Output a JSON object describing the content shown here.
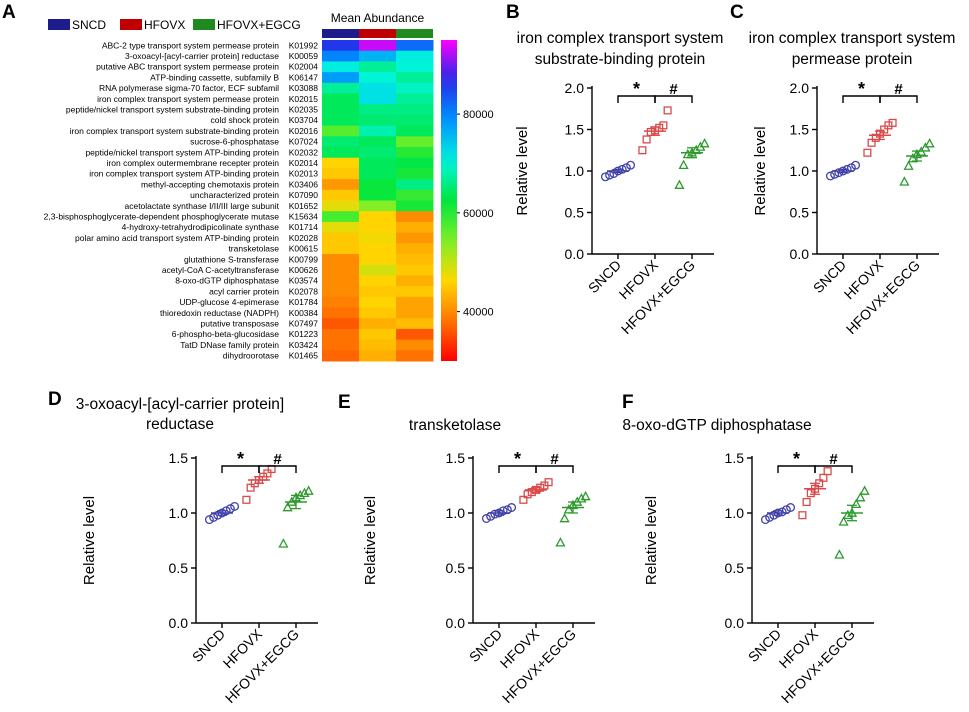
{
  "panel_letters": [
    "A",
    "B",
    "C",
    "D",
    "E",
    "F"
  ],
  "chart_data": [
    {
      "panel": "A",
      "type": "heatmap",
      "title": "Mean Abundance",
      "groups": [
        {
          "name": "SNCD",
          "color": "#1c1c8c"
        },
        {
          "name": "HFOVX",
          "color": "#c00000"
        },
        {
          "name": "HFOVX+EGCG",
          "color": "#1f8a1f"
        }
      ],
      "colorbar": {
        "min": 30000,
        "max": 95000,
        "ticks": [
          "80000",
          "60000",
          "40000"
        ],
        "tick_values": [
          80000,
          60000,
          40000
        ]
      },
      "rows": [
        {
          "label": "ABC-2 type transport system permease protein",
          "ko": "K01992",
          "values": [
            86000,
            93000,
            82000
          ]
        },
        {
          "label": "3-oxoacyl-[acyl-carrier protein] reductase",
          "ko": "K00059",
          "values": [
            80000,
            76000,
            71000
          ]
        },
        {
          "label": "putative ABC transport system permease protein",
          "ko": "K02004",
          "values": [
            71000,
            67000,
            70000
          ]
        },
        {
          "label": "ATP-binding cassette, subfamily B",
          "ko": "K06147",
          "values": [
            78000,
            70000,
            67000
          ]
        },
        {
          "label": "RNA polymerase sigma-70 factor, ECF subfamil",
          "ko": "K03088",
          "values": [
            67000,
            72000,
            69000
          ]
        },
        {
          "label": "iron complex transport system permease protein",
          "ko": "K02015",
          "values": [
            64000,
            72000,
            67000
          ]
        },
        {
          "label": "peptide/nickel transport system substrate-binding protein",
          "ko": "K02035",
          "values": [
            64000,
            66000,
            66000
          ]
        },
        {
          "label": "cold shock protein",
          "ko": "K03704",
          "values": [
            64000,
            65000,
            65000
          ]
        },
        {
          "label": "iron complex transport system substrate-binding protein",
          "ko": "K02016",
          "values": [
            57000,
            68000,
            64000
          ]
        },
        {
          "label": "sucrose-6-phosphatase",
          "ko": "K07024",
          "values": [
            65000,
            64000,
            56000
          ]
        },
        {
          "label": "peptide/nickel transport system ATP-binding protein",
          "ko": "K02032",
          "values": [
            64000,
            65000,
            60000
          ]
        },
        {
          "label": "iron complex outermembrane recepter protein",
          "ko": "K02014",
          "values": [
            46000,
            64000,
            63000
          ]
        },
        {
          "label": "iron complex transport system ATP-binding protein",
          "ko": "K02013",
          "values": [
            45000,
            64000,
            61000
          ]
        },
        {
          "label": "methyl-accepting chemotaxis protein",
          "ko": "K03406",
          "values": [
            41000,
            62000,
            66000
          ]
        },
        {
          "label": "uncharacterized protein",
          "ko": "K07090",
          "values": [
            45000,
            62000,
            59000
          ]
        },
        {
          "label": "acetolactate synthase I/II/III large subunit",
          "ko": "K01652",
          "values": [
            48000,
            54000,
            61000
          ]
        },
        {
          "label": "2,3-bisphosphoglycerate-dependent phosphoglycerate mutase",
          "ko": "K15634",
          "values": [
            58000,
            46000,
            40000
          ]
        },
        {
          "label": "4-hydroxy-tetrahydrodipicolinate synthase",
          "ko": "K01714",
          "values": [
            48000,
            46000,
            43000
          ]
        },
        {
          "label": "polar amino acid transport system ATP-binding protein",
          "ko": "K02028",
          "values": [
            45000,
            47000,
            41000
          ]
        },
        {
          "label": "transketolase",
          "ko": "K00615",
          "values": [
            45000,
            46000,
            43000
          ]
        },
        {
          "label": "glutathione S-transferase",
          "ko": "K00799",
          "values": [
            40000,
            46000,
            44000
          ]
        },
        {
          "label": "acetyl-CoA C-acetyltransferase",
          "ko": "K00626",
          "values": [
            40000,
            49000,
            45000
          ]
        },
        {
          "label": "8-oxo-dGTP diphosphatase",
          "ko": "K03574",
          "values": [
            40000,
            46000,
            43000
          ]
        },
        {
          "label": "acyl carrier protein",
          "ko": "K02078",
          "values": [
            40000,
            45000,
            45000
          ]
        },
        {
          "label": "UDP-glucose 4-epimerase",
          "ko": "K01784",
          "values": [
            39000,
            46000,
            42000
          ]
        },
        {
          "label": "thioredoxin reductase (NADPH)",
          "ko": "K00384",
          "values": [
            38000,
            45000,
            42000
          ]
        },
        {
          "label": "putative transposase",
          "ko": "K07497",
          "values": [
            36000,
            43000,
            44000
          ]
        },
        {
          "label": "6-phospho-beta-glucosidase",
          "ko": "K01223",
          "values": [
            38000,
            45000,
            36000
          ]
        },
        {
          "label": "TatD DNase family protein",
          "ko": "K03424",
          "values": [
            38000,
            44000,
            40000
          ]
        },
        {
          "label": "dihydroorotase",
          "ko": "K01465",
          "values": [
            37000,
            43000,
            38000
          ]
        }
      ]
    },
    {
      "panel": "B",
      "type": "scatter",
      "title": [
        "iron complex transport system",
        "substrate-binding protein"
      ],
      "ylabel": "Relative level",
      "categories": [
        "SNCD",
        "HFOVX",
        "HFOVX+EGCG"
      ],
      "ylim": [
        0.0,
        2.0
      ],
      "yticks": [
        "0.0",
        "0.5",
        "1.0",
        "1.5",
        "2.0"
      ],
      "series": [
        {
          "name": "SNCD",
          "marker": "circle",
          "color": "#4040a8",
          "values": [
            0.93,
            0.95,
            0.97,
            1.0,
            1.02,
            1.04,
            1.07
          ],
          "mean": 1.0,
          "sem": 0.02
        },
        {
          "name": "HFOVX",
          "marker": "square",
          "color": "#d94a4a",
          "values": [
            1.25,
            1.38,
            1.47,
            1.49,
            1.52,
            1.55,
            1.73
          ],
          "mean": 1.48,
          "sem": 0.05
        },
        {
          "name": "HFOVX+EGCG",
          "marker": "triangle",
          "color": "#2e9a2e",
          "values": [
            0.83,
            1.07,
            1.2,
            1.22,
            1.25,
            1.29,
            1.33
          ],
          "mean": 1.22,
          "sem": 0.06
        }
      ],
      "annotations": [
        "*",
        "#"
      ]
    },
    {
      "panel": "C",
      "type": "scatter",
      "title": [
        "iron complex transport system",
        "permease protein"
      ],
      "ylabel": "Relative level",
      "categories": [
        "SNCD",
        "HFOVX",
        "HFOVX+EGCG"
      ],
      "ylim": [
        0.0,
        2.0
      ],
      "yticks": [
        "0.0",
        "0.5",
        "1.0",
        "1.5",
        "2.0"
      ],
      "series": [
        {
          "name": "SNCD",
          "marker": "circle",
          "color": "#4040a8",
          "values": [
            0.94,
            0.96,
            0.98,
            1.0,
            1.02,
            1.04,
            1.07
          ],
          "mean": 1.0,
          "sem": 0.02
        },
        {
          "name": "HFOVX",
          "marker": "square",
          "color": "#d94a4a",
          "values": [
            1.22,
            1.34,
            1.4,
            1.45,
            1.5,
            1.55,
            1.58
          ],
          "mean": 1.43,
          "sem": 0.05
        },
        {
          "name": "HFOVX+EGCG",
          "marker": "triangle",
          "color": "#2e9a2e",
          "values": [
            0.87,
            1.06,
            1.15,
            1.2,
            1.23,
            1.28,
            1.33
          ],
          "mean": 1.18,
          "sem": 0.06
        }
      ],
      "annotations": [
        "*",
        "#"
      ]
    },
    {
      "panel": "D",
      "type": "scatter",
      "title": [
        "3-oxoacyl-[acyl-carrier protein]",
        "reductase"
      ],
      "ylabel": "Relative level",
      "categories": [
        "SNCD",
        "HFOVX",
        "HFOVX+EGCG"
      ],
      "ylim": [
        0.0,
        1.5
      ],
      "yticks": [
        "0.0",
        "0.5",
        "1.0",
        "1.5"
      ],
      "series": [
        {
          "name": "SNCD",
          "marker": "circle",
          "color": "#4040a8",
          "values": [
            0.94,
            0.96,
            0.98,
            1.0,
            1.02,
            1.04,
            1.06
          ],
          "mean": 1.0,
          "sem": 0.02
        },
        {
          "name": "HFOVX",
          "marker": "square",
          "color": "#d94a4a",
          "values": [
            1.12,
            1.23,
            1.27,
            1.3,
            1.33,
            1.36,
            1.4
          ],
          "mean": 1.3,
          "sem": 0.03
        },
        {
          "name": "HFOVX+EGCG",
          "marker": "triangle",
          "color": "#2e9a2e",
          "values": [
            0.72,
            1.05,
            1.1,
            1.14,
            1.16,
            1.18,
            1.2
          ],
          "mean": 1.1,
          "sem": 0.06
        }
      ],
      "annotations": [
        "*",
        "#"
      ]
    },
    {
      "panel": "E",
      "type": "scatter",
      "title": [
        "transketolase"
      ],
      "ylabel": "Relative level",
      "categories": [
        "SNCD",
        "HFOVX",
        "HFOVX+EGCG"
      ],
      "ylim": [
        0.0,
        1.5
      ],
      "yticks": [
        "0.0",
        "0.5",
        "1.0",
        "1.5"
      ],
      "series": [
        {
          "name": "SNCD",
          "marker": "circle",
          "color": "#4040a8",
          "values": [
            0.95,
            0.97,
            0.99,
            1.0,
            1.02,
            1.03,
            1.05
          ],
          "mean": 1.0,
          "sem": 0.02
        },
        {
          "name": "HFOVX",
          "marker": "square",
          "color": "#d94a4a",
          "values": [
            1.12,
            1.17,
            1.19,
            1.21,
            1.23,
            1.25,
            1.28
          ],
          "mean": 1.21,
          "sem": 0.02
        },
        {
          "name": "HFOVX+EGCG",
          "marker": "triangle",
          "color": "#2e9a2e",
          "values": [
            0.73,
            0.95,
            1.03,
            1.07,
            1.1,
            1.13,
            1.15
          ],
          "mean": 1.05,
          "sem": 0.05
        }
      ],
      "annotations": [
        "*",
        "#"
      ]
    },
    {
      "panel": "F",
      "type": "scatter",
      "title": [
        "8-oxo-dGTP diphosphatase"
      ],
      "ylabel": "Relative level",
      "categories": [
        "SNCD",
        "HFOVX",
        "HFOVX+EGCG"
      ],
      "ylim": [
        0.0,
        1.5
      ],
      "yticks": [
        "0.0",
        "0.5",
        "1.0",
        "1.5"
      ],
      "series": [
        {
          "name": "SNCD",
          "marker": "circle",
          "color": "#4040a8",
          "values": [
            0.94,
            0.96,
            0.98,
            1.0,
            1.01,
            1.03,
            1.05
          ],
          "mean": 1.0,
          "sem": 0.02
        },
        {
          "name": "HFOVX",
          "marker": "square",
          "color": "#d94a4a",
          "values": [
            0.98,
            1.1,
            1.18,
            1.22,
            1.27,
            1.32,
            1.38
          ],
          "mean": 1.22,
          "sem": 0.05
        },
        {
          "name": "HFOVX+EGCG",
          "marker": "triangle",
          "color": "#2e9a2e",
          "values": [
            0.62,
            0.92,
            0.98,
            1.0,
            1.08,
            1.14,
            1.2
          ],
          "mean": 1.0,
          "sem": 0.07
        }
      ],
      "annotations": [
        "*",
        "#"
      ]
    }
  ]
}
